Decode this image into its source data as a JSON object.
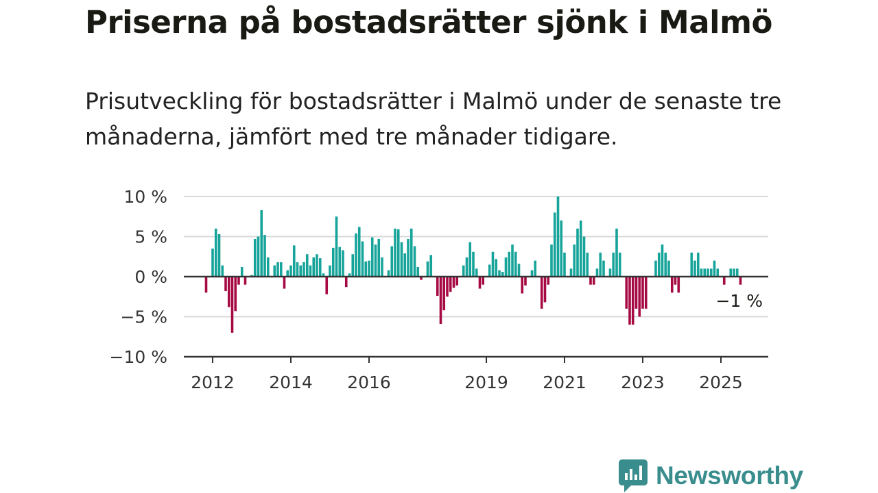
{
  "title": "Priserna på bostadsrätter sjönk i Malmö",
  "subtitle": "Prisutveckling för bostadsrätter i Malmö under de senaste tre månaderna, jämfört med tre månader tidigare.",
  "brand": {
    "name": "Newsworthy"
  },
  "colors": {
    "positive": "#16a49a",
    "negative": "#a60a43",
    "axis": "#333333",
    "grid": "#d9d9d9",
    "brand": "#3a8d8d"
  },
  "chart_data": {
    "type": "bar",
    "x_start": "2011-11",
    "x_frequency": "monthly",
    "ylim": [
      -10,
      10
    ],
    "yticks": [
      {
        "value": 10,
        "label": "10 %"
      },
      {
        "value": 5,
        "label": "5 %"
      },
      {
        "value": 0,
        "label": "0 %"
      },
      {
        "value": -5,
        "label": "−5 %"
      },
      {
        "value": -10,
        "label": "−10 %"
      }
    ],
    "xticks": [
      {
        "date": "2012-01",
        "label": "2012"
      },
      {
        "date": "2014-01",
        "label": "2014"
      },
      {
        "date": "2016-01",
        "label": "2016"
      },
      {
        "date": "2019-01",
        "label": "2019"
      },
      {
        "date": "2021-01",
        "label": "2021"
      },
      {
        "date": "2023-01",
        "label": "2023"
      },
      {
        "date": "2025-01",
        "label": "2025"
      }
    ],
    "annotation": "−1 %",
    "values": [
      -2,
      0,
      3.5,
      6,
      5.3,
      1.4,
      -1.8,
      -3.8,
      -7,
      -4.3,
      -1,
      1.2,
      -1,
      0,
      0.2,
      4.7,
      5,
      8.3,
      5.2,
      2.4,
      0,
      1.4,
      1.8,
      1.8,
      -1.5,
      0.8,
      1.4,
      3.9,
      1.8,
      1.4,
      1.8,
      2.8,
      1.4,
      2.4,
      2.8,
      2.3,
      0.4,
      -2.2,
      1.4,
      3.6,
      7.5,
      3.7,
      3.3,
      -1.3,
      0.4,
      2.8,
      5.4,
      6.2,
      4.4,
      1.9,
      2,
      4.9,
      4,
      4.7,
      2.4,
      0,
      0.8,
      3.8,
      6,
      5.9,
      4.3,
      2.9,
      4.7,
      6,
      3.8,
      1.2,
      -0.4,
      0,
      1.9,
      2.7,
      0,
      -2.4,
      -5.9,
      -4.2,
      -2.5,
      -1.9,
      -1.4,
      -1.1,
      0,
      1.4,
      2.4,
      4.3,
      3.1,
      1,
      -1.5,
      -1,
      0,
      1.5,
      3.1,
      2.2,
      0.8,
      0.6,
      2.4,
      3.1,
      4,
      3.1,
      1.6,
      -2.1,
      -1.1,
      0,
      0.8,
      2,
      0,
      -4,
      -3.2,
      -1,
      4,
      8,
      10,
      7,
      3,
      0,
      1,
      4,
      6,
      7,
      5,
      3,
      -1,
      -1,
      1,
      3,
      2,
      0,
      1,
      3,
      6,
      3,
      0,
      -4,
      -6,
      -6,
      -4,
      -5,
      -4,
      -4,
      0,
      0,
      2,
      3,
      4,
      3,
      2,
      -2,
      -1,
      -2,
      0,
      0,
      0,
      3,
      2,
      3,
      1,
      1,
      1,
      1,
      2,
      1,
      0,
      -1,
      0,
      1,
      1,
      1,
      -1
    ]
  }
}
